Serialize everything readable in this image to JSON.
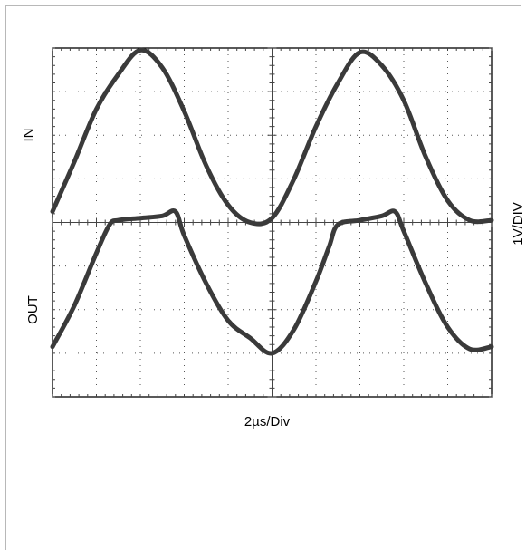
{
  "chart_data": {
    "type": "line",
    "title": "",
    "xlabel": "2µs/Div",
    "ylabels": {
      "upper": "IN",
      "lower": "OUT",
      "right": "1V/DIV"
    },
    "grid": {
      "x_divisions": 10,
      "y_divisions": 8,
      "style": "dotted"
    },
    "xlim": [
      0,
      10
    ],
    "ylim": [
      0,
      8
    ],
    "series": [
      {
        "name": "IN",
        "x": [
          0,
          0.5,
          1,
          1.5,
          2,
          2.5,
          3,
          3.5,
          4,
          4.5,
          5,
          5.5,
          6,
          6.5,
          7,
          7.5,
          8,
          8.5,
          9,
          9.5,
          10
        ],
        "y": [
          4.25,
          5.4,
          6.6,
          7.4,
          7.95,
          7.55,
          6.55,
          5.3,
          4.4,
          4.0,
          4.1,
          5.0,
          6.2,
          7.2,
          7.9,
          7.6,
          6.8,
          5.5,
          4.5,
          4.05,
          4.05
        ]
      },
      {
        "name": "OUT",
        "x": [
          0,
          0.5,
          1,
          1.3,
          1.5,
          2,
          2.5,
          2.8,
          3,
          3.5,
          4,
          4.5,
          5,
          5.5,
          6,
          6.3,
          6.5,
          7,
          7.5,
          7.8,
          8,
          8.5,
          9,
          9.5,
          10
        ],
        "y": [
          1.15,
          2.1,
          3.3,
          3.95,
          4.05,
          4.1,
          4.15,
          4.25,
          3.7,
          2.6,
          1.75,
          1.35,
          1.0,
          1.55,
          2.65,
          3.45,
          3.95,
          4.05,
          4.15,
          4.25,
          3.8,
          2.6,
          1.6,
          1.1,
          1.15
        ]
      }
    ]
  }
}
